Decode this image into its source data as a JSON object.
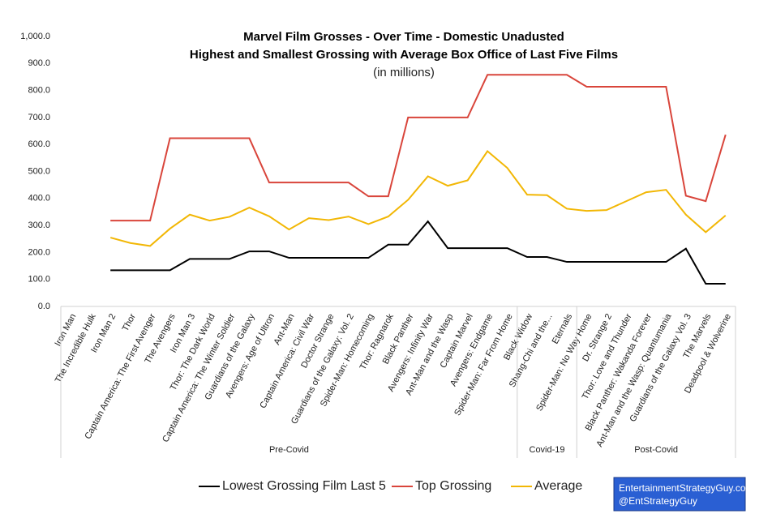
{
  "chart_data": {
    "type": "line",
    "title": "Marvel Film Grosses - Over Time - Domestic Unadusted",
    "subtitle": "Highest and Smallest Grossing with Average Box Office of Last Five Films",
    "units": "(in millions)",
    "categories": [
      "Iron Man",
      "The Incredible Hulk",
      "Iron Man 2",
      "Thor",
      "Captain America: The First Avenger",
      "The Avengers",
      "Iron Man 3",
      "Thor: The Dark World",
      "Captain America: The Winter Soldier",
      "Guardians of the Galaxy",
      "Avengers: Age of Ultron",
      "Ant-Man",
      "Captain America: Civil War",
      "Doctor Strange",
      "Guardians of the Galaxy: Vol. 2",
      "Spider-Man: Homecoming",
      "Thor: Ragnarok",
      "Black Panther",
      "Avengers: Infinity War",
      "Ant-Man and the Wasp",
      "Captain Marvel",
      "Avengers: Endgame",
      "Spider-Man: Far From Home",
      "Black Widow",
      "Shang-Chi and the...",
      "Eternals",
      "Spider-Man: No Way Home",
      "Dr. Strange 2",
      "Thor: Love and Thunder",
      "Black Panther: Wakanda Forever",
      "Ant-Man and the Wasp: Quantumania",
      "Guardians of the Galaxy Vol. 3",
      "The Marvels",
      "Deadpool & Wolverine"
    ],
    "groups": [
      {
        "name": "Pre-Covid",
        "count": 23
      },
      {
        "name": "Covid-19",
        "count": 3
      },
      {
        "name": "Post-Covid",
        "count": 8
      }
    ],
    "series": [
      {
        "name": "Lowest Grossing Film Last 5",
        "color": "#000000",
        "values": [
          null,
          null,
          134,
          134,
          134,
          134,
          176,
          176,
          176,
          204,
          204,
          180,
          180,
          180,
          180,
          180,
          229,
          229,
          315,
          216,
          216,
          216,
          216,
          183,
          183,
          165,
          165,
          165,
          165,
          165,
          165,
          214,
          84,
          84
        ]
      },
      {
        "name": "Top Grossing",
        "color": "#d9453b",
        "values": [
          null,
          null,
          318,
          318,
          318,
          623,
          623,
          623,
          623,
          623,
          459,
          459,
          459,
          459,
          459,
          408,
          408,
          700,
          700,
          700,
          700,
          858,
          858,
          858,
          858,
          858,
          814,
          814,
          814,
          814,
          814,
          410,
          390,
          636
        ]
      },
      {
        "name": "Average",
        "color": "#f2b705",
        "values": [
          null,
          null,
          255,
          235,
          224,
          288,
          340,
          318,
          332,
          366,
          334,
          285,
          327,
          320,
          333,
          305,
          333,
          395,
          482,
          447,
          467,
          575,
          513,
          414,
          412,
          362,
          354,
          357,
          390,
          423,
          432,
          340,
          275,
          337
        ]
      }
    ],
    "ylim": [
      0,
      1000
    ],
    "yticks": [
      {
        "value": 0,
        "label": "0.0"
      },
      {
        "value": 100,
        "label": "100.0"
      },
      {
        "value": 200,
        "label": "200.0"
      },
      {
        "value": 300,
        "label": "300.0"
      },
      {
        "value": 400,
        "label": "400.0"
      },
      {
        "value": 500,
        "label": "500.0"
      },
      {
        "value": 600,
        "label": "600.0"
      },
      {
        "value": 700,
        "label": "700.0"
      },
      {
        "value": 800,
        "label": "800.0"
      },
      {
        "value": 900,
        "label": "900.0"
      },
      {
        "value": 1000,
        "label": "1,000.0"
      }
    ],
    "legend": "bottom",
    "credit": [
      "EntertainmentStrategyGuy.com",
      "@EntStrategyGuy"
    ]
  }
}
